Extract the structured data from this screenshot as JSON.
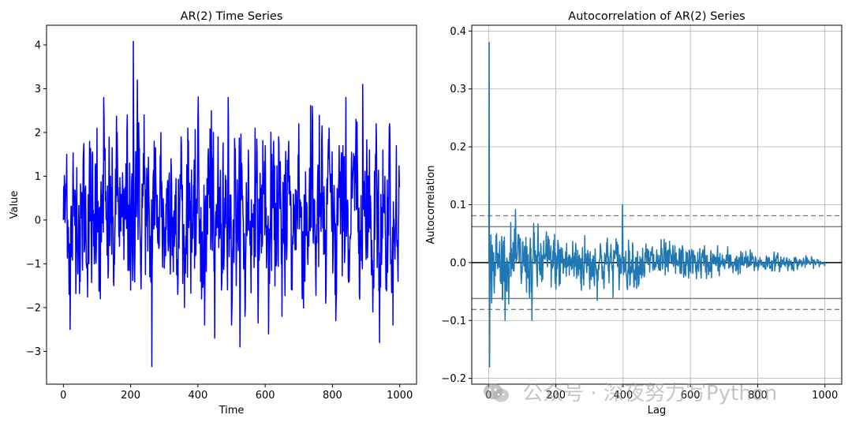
{
  "watermark": {
    "text": "公众号 · 深夜努力写Python",
    "icon": "wechat-icon"
  },
  "chart_data": [
    {
      "type": "line",
      "title": "AR(2) Time Series",
      "xlabel": "Time",
      "ylabel": "Value",
      "xlim": [
        -50,
        1050
      ],
      "ylim": [
        -3.75,
        4.45
      ],
      "xticks": [
        0,
        200,
        400,
        600,
        800,
        1000
      ],
      "yticks": [
        -3,
        -2,
        -1,
        0,
        1,
        2,
        3,
        4
      ],
      "grid": false,
      "color": "#0000ff",
      "n_points": 1000,
      "series": [
        {
          "values_sampled_every_10": [
            0.0,
            1.5,
            -2.5,
            0.6,
            1.2,
            -1.4,
            1.6,
            -1.1,
            0.9,
            -0.6,
            2.1,
            -1.8,
            2.8,
            -0.8,
            1.0,
            -1.5,
            2.0,
            0.3,
            -0.9,
            2.4,
            -1.6,
            0.8,
            4.0,
            -1.2,
            2.4,
            0.2,
            -1.4,
            1.8,
            -0.4,
            2.0,
            -1.1,
            0.9,
            1.4,
            -0.6,
            -1.7,
            1.9,
            -2.0,
            2.1,
            0.6,
            -1.1,
            2.3,
            -0.8,
            -2.4,
            1.4,
            2.5,
            -2.7,
            1.9,
            -1.6,
            0.5,
            2.8,
            -2.4,
            1.6,
            -0.7,
            1.3,
            -2.2,
            1.6,
            -0.8,
            2.1,
            -1.4,
            0.8,
            1.7,
            -2.6,
            1.5,
            -0.4,
            1.9,
            -2.2,
            0.9,
            1.8,
            -1.6,
            0.7,
            2.2,
            -1.8,
            1.1,
            -0.6,
            2.6,
            -1.2,
            0.8,
            1.5,
            -1.9,
            2.1,
            0.6,
            -2.3,
            1.7,
            -0.5,
            2.8,
            -1.4,
            0.9,
            2.3,
            -1.7,
            3.1,
            -0.9,
            1.6,
            -2.1,
            2.2,
            -2.8,
            1.6,
            -1.2,
            2.2,
            -2.4,
            1.7,
            0.0
          ],
          "extremes": {
            "max": 4.08,
            "min": -3.35
          }
        }
      ]
    },
    {
      "type": "line",
      "title": "Autocorrelation of AR(2) Series",
      "xlabel": "Lag",
      "ylabel": "Autocorrelation",
      "xlim": [
        -50,
        1050
      ],
      "ylim": [
        -0.21,
        0.41
      ],
      "xticks": [
        0,
        200,
        400,
        600,
        800,
        1000
      ],
      "yticks": [
        -0.2,
        -0.1,
        0.0,
        0.1,
        0.2,
        0.3,
        0.4
      ],
      "grid": true,
      "color": "#1f77b4",
      "n_points": 1000,
      "lag1_value": 0.38,
      "lag2_value": -0.18,
      "zero_line": 0.0,
      "conf_99": 0.081,
      "conf_95": 0.062,
      "envelope_start": 0.055,
      "envelope_end": 0.005
    }
  ]
}
